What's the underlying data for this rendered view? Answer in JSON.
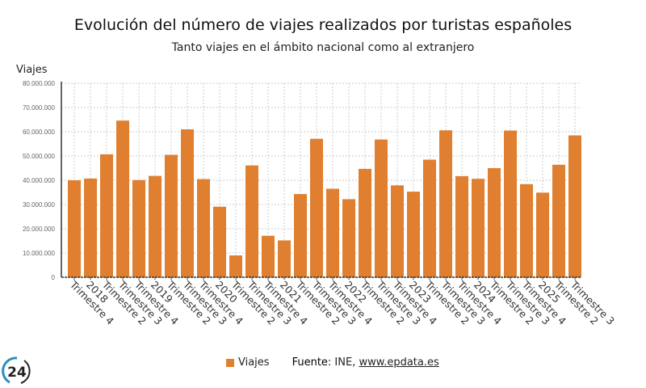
{
  "chart_data": {
    "type": "bar",
    "title": "Evolución del número de viajes realizados por turistas españoles",
    "subtitle": "Tanto viajes en el ámbito nacional como al extranjero",
    "ylabel": "Viajes",
    "ylim": [
      0,
      80000000
    ],
    "yticks": [
      "0",
      "10.000.000",
      "20.000.000",
      "30.000.000",
      "40.000.000",
      "50.000.000",
      "60.000.000",
      "70.000.000",
      "80.000.000"
    ],
    "grid": true,
    "color": "#e07f30",
    "categories": [
      "Trimestre 4",
      "2018",
      "Trimestre 2",
      "Trimestre 3",
      "Trimestre 4",
      "2019",
      "Trimestre 2",
      "Trimestre 3",
      "Trimestre 4",
      "2020",
      "Trimestre 2",
      "Trimestre 3",
      "Trimestre 4",
      "2021",
      "Trimestre 2",
      "Trimestre 3",
      "Trimestre 4",
      "2022",
      "Trimestre 2",
      "Trimestre 3",
      "Trimestre 4",
      "2023",
      "Trimestre 2",
      "Trimestre 3",
      "Trimestre 4",
      "2024",
      "Trimestre 2",
      "Trimestre 3",
      "Trimestre 4",
      "2025",
      "Trimestre 2",
      "Trimestre 3"
    ],
    "series": [
      {
        "name": "Viajes",
        "values": [
          40000000,
          40700000,
          50700000,
          64600000,
          40100000,
          41800000,
          50500000,
          61000000,
          40500000,
          29100000,
          9000000,
          46100000,
          17100000,
          15200000,
          34300000,
          57100000,
          36500000,
          32200000,
          44700000,
          56800000,
          37900000,
          35300000,
          48500000,
          60600000,
          41700000,
          40600000,
          45000000,
          60500000,
          38400000,
          34900000,
          46400000,
          58500000
        ]
      }
    ],
    "legend": "bottom"
  },
  "footer": {
    "legend_label": "Viajes",
    "source_label": "Fuente",
    "source_text": ": INE, ",
    "source_link": "www.epdata.es",
    "logo_text": "24"
  }
}
